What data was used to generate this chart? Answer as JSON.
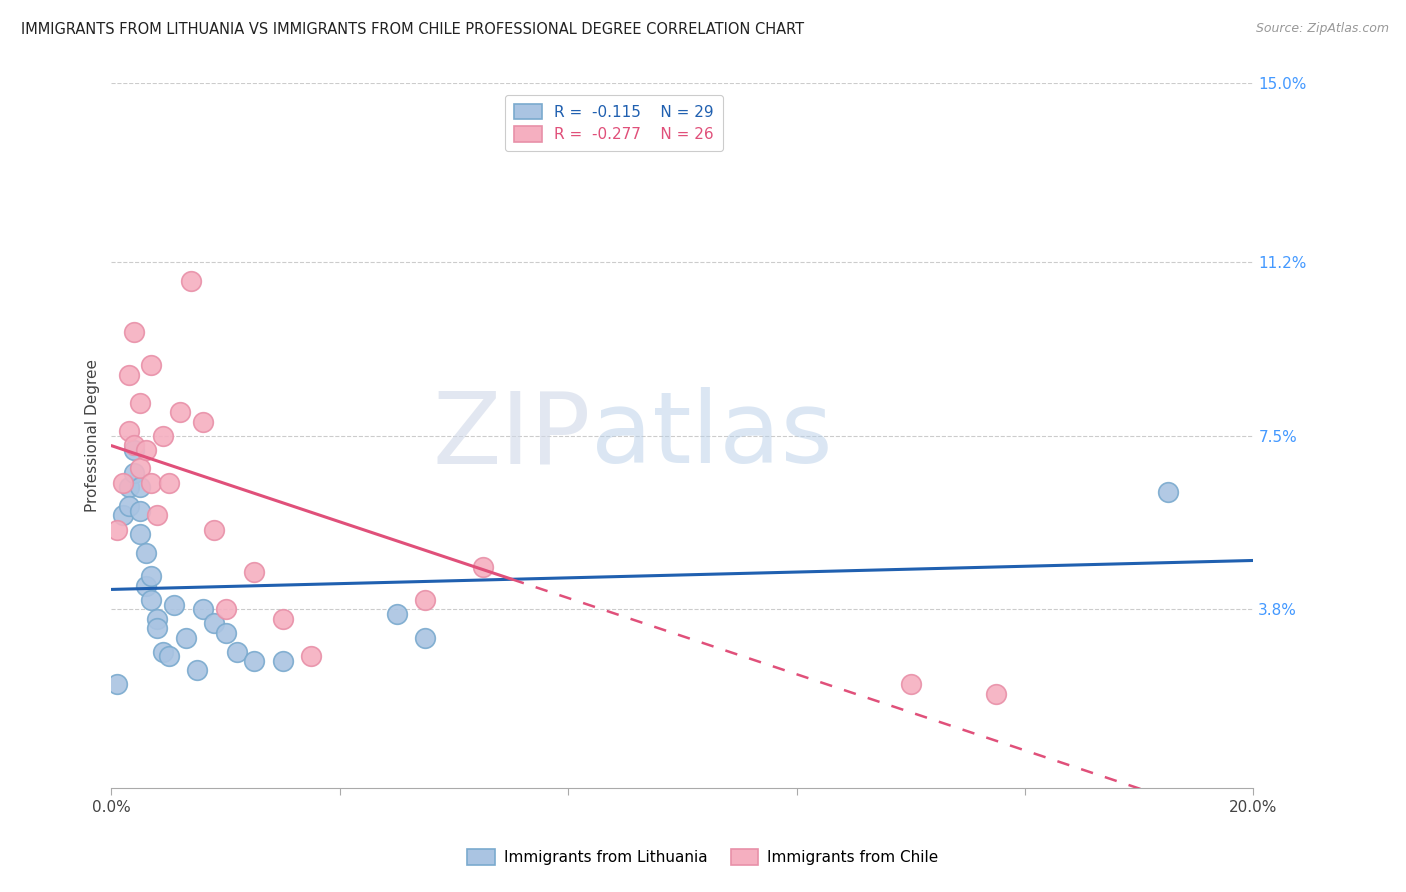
{
  "title": "IMMIGRANTS FROM LITHUANIA VS IMMIGRANTS FROM CHILE PROFESSIONAL DEGREE CORRELATION CHART",
  "source": "Source: ZipAtlas.com",
  "ylabel": "Professional Degree",
  "xlim": [
    0.0,
    0.2
  ],
  "ylim": [
    0.0,
    0.15
  ],
  "xticks": [
    0.0,
    0.04,
    0.08,
    0.12,
    0.16,
    0.2
  ],
  "xticklabels": [
    "0.0%",
    "",
    "",
    "",
    "",
    "20.0%"
  ],
  "yticks_right": [
    0.038,
    0.075,
    0.112,
    0.15
  ],
  "ytick_right_labels": [
    "3.8%",
    "7.5%",
    "11.2%",
    "15.0%"
  ],
  "lithuania_color": "#aac4e2",
  "chile_color": "#f5afc0",
  "lithuania_edge": "#7aaace",
  "chile_edge": "#e890a8",
  "line_lithuania_color": "#2060b0",
  "line_chile_color": "#e0507a",
  "legend_R_lithuania": "R =",
  "legend_R_val_lithuania": "-0.115",
  "legend_N_lithuania": "N = 29",
  "legend_R_chile": "R =",
  "legend_R_val_chile": "-0.277",
  "legend_N_chile": "N = 26",
  "watermark_zip": "ZIP",
  "watermark_atlas": "atlas",
  "lithuania_x": [
    0.001,
    0.002,
    0.003,
    0.003,
    0.004,
    0.004,
    0.005,
    0.005,
    0.005,
    0.006,
    0.006,
    0.007,
    0.007,
    0.008,
    0.008,
    0.009,
    0.01,
    0.011,
    0.013,
    0.015,
    0.016,
    0.018,
    0.02,
    0.022,
    0.025,
    0.03,
    0.05,
    0.055,
    0.185
  ],
  "lithuania_y": [
    0.022,
    0.058,
    0.064,
    0.06,
    0.072,
    0.067,
    0.064,
    0.059,
    0.054,
    0.05,
    0.043,
    0.045,
    0.04,
    0.036,
    0.034,
    0.029,
    0.028,
    0.039,
    0.032,
    0.025,
    0.038,
    0.035,
    0.033,
    0.029,
    0.027,
    0.027,
    0.037,
    0.032,
    0.063
  ],
  "chile_x": [
    0.001,
    0.002,
    0.003,
    0.003,
    0.004,
    0.004,
    0.005,
    0.005,
    0.006,
    0.007,
    0.007,
    0.008,
    0.009,
    0.01,
    0.012,
    0.014,
    0.016,
    0.018,
    0.02,
    0.025,
    0.03,
    0.035,
    0.055,
    0.065,
    0.14,
    0.155
  ],
  "chile_y": [
    0.055,
    0.065,
    0.076,
    0.088,
    0.097,
    0.073,
    0.082,
    0.068,
    0.072,
    0.09,
    0.065,
    0.058,
    0.075,
    0.065,
    0.08,
    0.108,
    0.078,
    0.055,
    0.038,
    0.046,
    0.036,
    0.028,
    0.04,
    0.047,
    0.022,
    0.02
  ]
}
